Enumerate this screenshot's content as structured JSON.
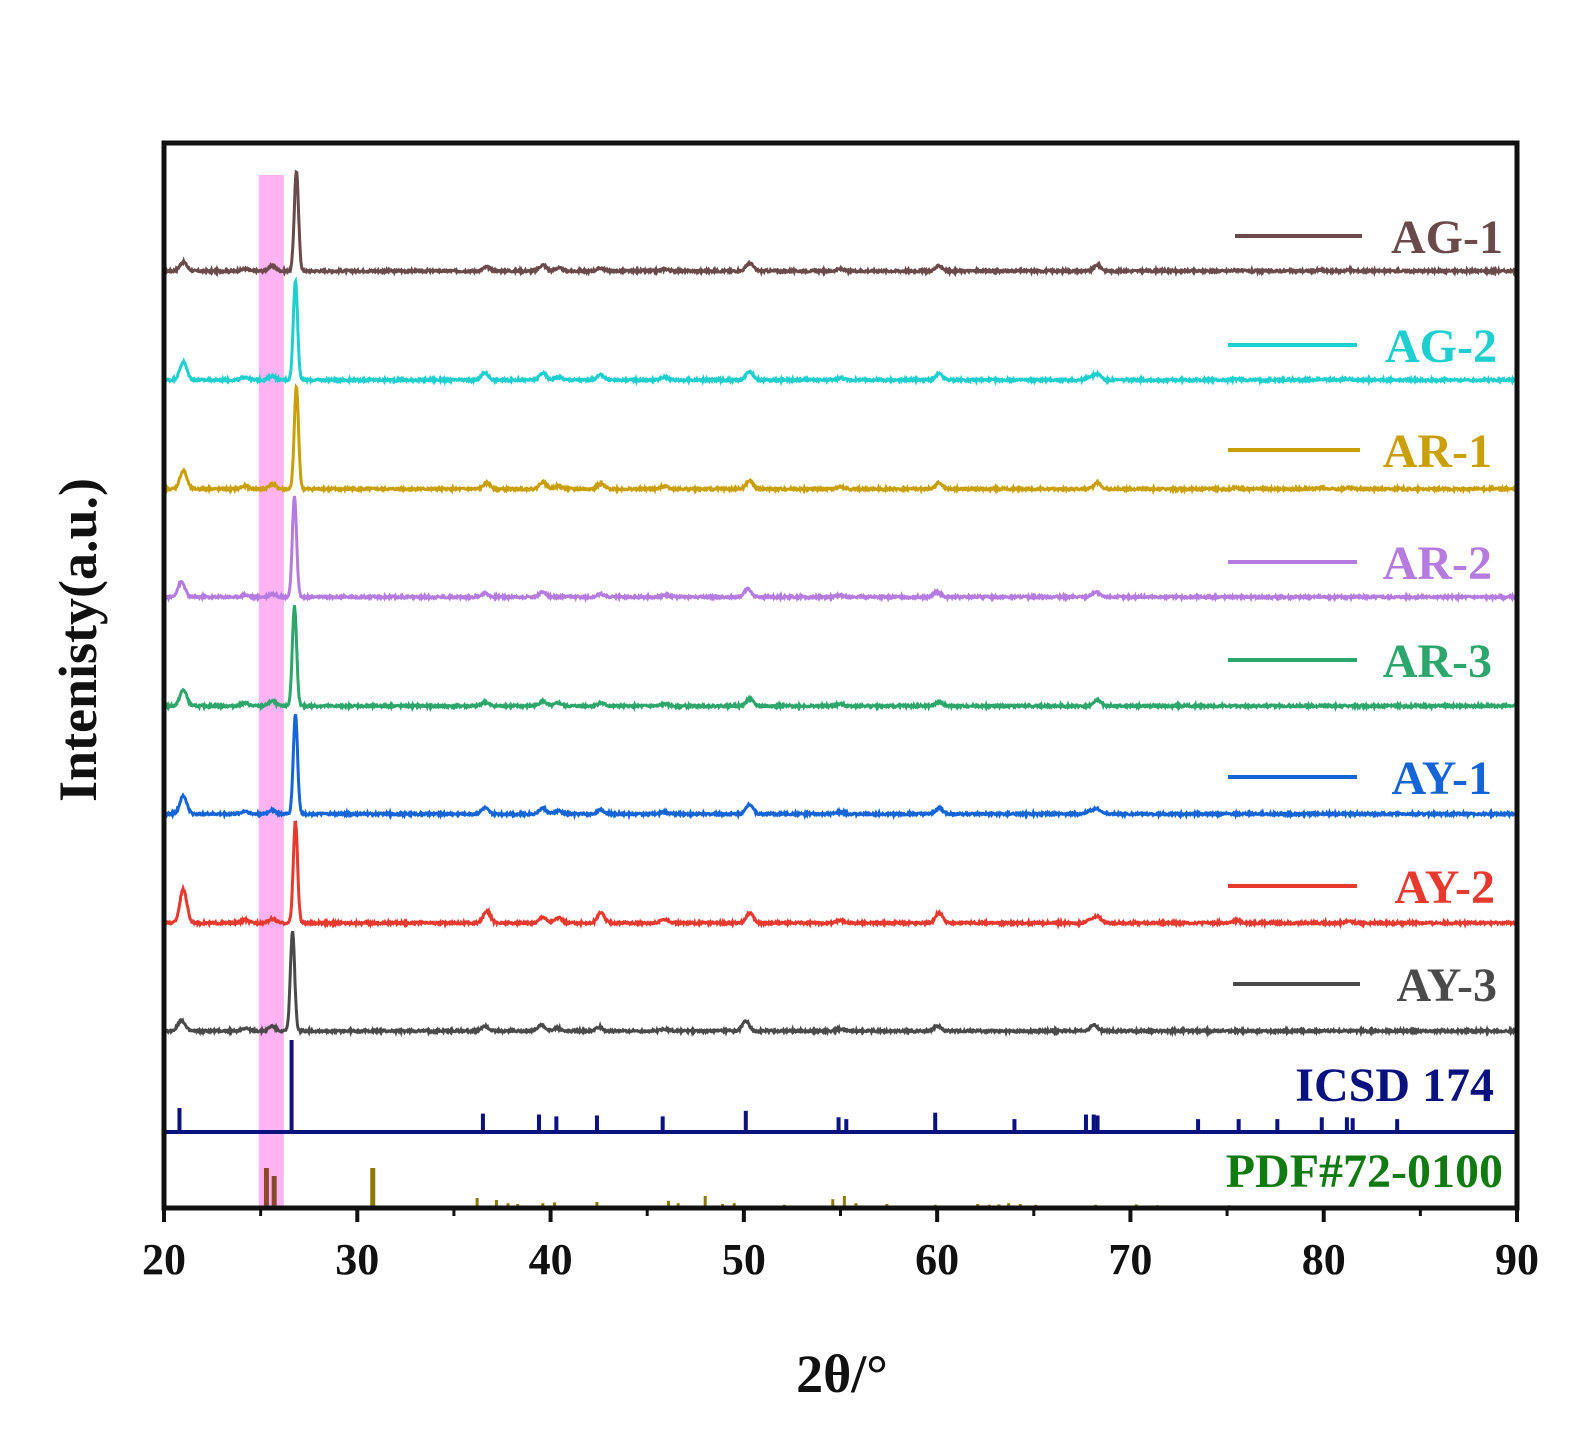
{
  "chart_data": {
    "type": "line",
    "title": "",
    "xlabel": "2θ/°",
    "ylabel": "Intenisty(a.u.)",
    "xlim": [
      20,
      90
    ],
    "xticks": [
      20,
      30,
      40,
      50,
      60,
      70,
      80,
      90
    ],
    "xtick_labels": [
      "20",
      "30",
      "40",
      "50",
      "60",
      "70",
      "80",
      "90"
    ],
    "grid": false,
    "yticks_shown": false,
    "legend": "right, stacked labels",
    "highlight_band": {
      "x_range": [
        24.9,
        26.2
      ],
      "color": "#ffb3f3"
    },
    "series": [
      {
        "name": "AG-1",
        "color": "#6a4a4a",
        "peaks": [
          [
            21.0,
            0.09
          ],
          [
            24.2,
            0.02
          ],
          [
            25.6,
            0.05
          ],
          [
            26.85,
            1.0
          ],
          [
            36.7,
            0.04
          ],
          [
            39.6,
            0.06
          ],
          [
            40.4,
            0.03
          ],
          [
            42.6,
            0.03
          ],
          [
            45.9,
            0.02
          ],
          [
            50.3,
            0.08
          ],
          [
            55.0,
            0.02
          ],
          [
            60.1,
            0.05
          ],
          [
            68.3,
            0.06
          ],
          [
            75.5,
            0.01
          ],
          [
            79.8,
            0.01
          ],
          [
            81.3,
            0.01
          ]
        ]
      },
      {
        "name": "AG-2",
        "color": "#1ecfcf",
        "peaks": [
          [
            21.0,
            0.18
          ],
          [
            24.2,
            0.03
          ],
          [
            25.6,
            0.04
          ],
          [
            26.8,
            1.0
          ],
          [
            36.6,
            0.07
          ],
          [
            39.6,
            0.07
          ],
          [
            40.4,
            0.03
          ],
          [
            42.6,
            0.05
          ],
          [
            45.9,
            0.03
          ],
          [
            50.3,
            0.09
          ],
          [
            55.0,
            0.02
          ],
          [
            60.1,
            0.06
          ],
          [
            67.9,
            0.03
          ],
          [
            68.3,
            0.06
          ],
          [
            75.5,
            0.01
          ],
          [
            79.8,
            0.01
          ],
          [
            81.3,
            0.01
          ]
        ]
      },
      {
        "name": "AR-1",
        "color": "#c9a00a",
        "peaks": [
          [
            21.0,
            0.18
          ],
          [
            24.2,
            0.03
          ],
          [
            25.6,
            0.05
          ],
          [
            26.85,
            1.0
          ],
          [
            36.7,
            0.06
          ],
          [
            39.6,
            0.07
          ],
          [
            40.4,
            0.03
          ],
          [
            42.6,
            0.05
          ],
          [
            45.9,
            0.03
          ],
          [
            50.3,
            0.08
          ],
          [
            55.0,
            0.02
          ],
          [
            60.1,
            0.06
          ],
          [
            68.3,
            0.06
          ],
          [
            75.5,
            0.01
          ],
          [
            79.8,
            0.01
          ],
          [
            81.3,
            0.01
          ]
        ]
      },
      {
        "name": "AR-2",
        "color": "#b57be0",
        "peaks": [
          [
            20.9,
            0.15
          ],
          [
            24.2,
            0.02
          ],
          [
            25.6,
            0.03
          ],
          [
            26.75,
            1.0
          ],
          [
            36.6,
            0.04
          ],
          [
            39.6,
            0.05
          ],
          [
            42.6,
            0.03
          ],
          [
            45.9,
            0.02
          ],
          [
            50.2,
            0.08
          ],
          [
            55.0,
            0.02
          ],
          [
            60.0,
            0.05
          ],
          [
            68.2,
            0.05
          ]
        ]
      },
      {
        "name": "AR-3",
        "color": "#2ca66a",
        "peaks": [
          [
            21.0,
            0.16
          ],
          [
            24.2,
            0.03
          ],
          [
            25.6,
            0.05
          ],
          [
            26.75,
            1.0
          ],
          [
            36.6,
            0.04
          ],
          [
            39.6,
            0.05
          ],
          [
            40.4,
            0.03
          ],
          [
            42.6,
            0.03
          ],
          [
            45.9,
            0.02
          ],
          [
            50.3,
            0.07
          ],
          [
            55.0,
            0.02
          ],
          [
            60.1,
            0.04
          ],
          [
            68.3,
            0.06
          ]
        ]
      },
      {
        "name": "AY-1",
        "color": "#1565d8",
        "peaks": [
          [
            21.0,
            0.18
          ],
          [
            24.2,
            0.03
          ],
          [
            25.6,
            0.04
          ],
          [
            26.8,
            1.0
          ],
          [
            36.6,
            0.06
          ],
          [
            39.6,
            0.06
          ],
          [
            40.4,
            0.03
          ],
          [
            42.6,
            0.04
          ],
          [
            45.9,
            0.02
          ],
          [
            50.3,
            0.1
          ],
          [
            55.0,
            0.02
          ],
          [
            60.1,
            0.06
          ],
          [
            67.9,
            0.03
          ],
          [
            68.3,
            0.05
          ]
        ]
      },
      {
        "name": "AY-2",
        "color": "#e8392f",
        "peaks": [
          [
            21.0,
            0.33
          ],
          [
            24.2,
            0.03
          ],
          [
            25.6,
            0.04
          ],
          [
            26.8,
            1.0
          ],
          [
            36.7,
            0.12
          ],
          [
            39.6,
            0.06
          ],
          [
            40.4,
            0.05
          ],
          [
            42.6,
            0.1
          ],
          [
            45.9,
            0.04
          ],
          [
            50.3,
            0.1
          ],
          [
            55.0,
            0.03
          ],
          [
            60.1,
            0.1
          ],
          [
            67.9,
            0.03
          ],
          [
            68.3,
            0.06
          ],
          [
            75.5,
            0.02
          ],
          [
            81.3,
            0.02
          ]
        ]
      },
      {
        "name": "AY-3",
        "color": "#4a4a4a",
        "peaks": [
          [
            20.9,
            0.11
          ],
          [
            24.2,
            0.03
          ],
          [
            25.6,
            0.05
          ],
          [
            26.65,
            1.0
          ],
          [
            36.6,
            0.05
          ],
          [
            39.5,
            0.06
          ],
          [
            40.3,
            0.03
          ],
          [
            42.5,
            0.04
          ],
          [
            45.9,
            0.02
          ],
          [
            50.1,
            0.1
          ],
          [
            55.0,
            0.02
          ],
          [
            60.0,
            0.05
          ],
          [
            68.1,
            0.06
          ]
        ]
      }
    ],
    "reference_patterns": [
      {
        "name": "ICSD 174",
        "color": "#0a1280",
        "sticks": [
          [
            20.8,
            0.26
          ],
          [
            26.6,
            1.0
          ],
          [
            36.5,
            0.2
          ],
          [
            39.4,
            0.19
          ],
          [
            40.3,
            0.17
          ],
          [
            42.4,
            0.18
          ],
          [
            45.8,
            0.17
          ],
          [
            50.1,
            0.23
          ],
          [
            54.9,
            0.16
          ],
          [
            55.3,
            0.14
          ],
          [
            59.9,
            0.21
          ],
          [
            64.0,
            0.14
          ],
          [
            67.7,
            0.19
          ],
          [
            68.1,
            0.19
          ],
          [
            68.3,
            0.18
          ],
          [
            73.5,
            0.14
          ],
          [
            75.6,
            0.14
          ],
          [
            77.6,
            0.14
          ],
          [
            79.9,
            0.16
          ],
          [
            81.2,
            0.16
          ],
          [
            81.5,
            0.15
          ],
          [
            83.8,
            0.14
          ]
        ]
      },
      {
        "name": "PDF#72-0100",
        "color": "#117a11",
        "stick_color": "#8a7a00",
        "sticks": [
          [
            25.3,
            1.0
          ],
          [
            25.7,
            0.8
          ],
          [
            30.8,
            1.0
          ],
          [
            32.9,
            0.06
          ],
          [
            34.9,
            0.05
          ],
          [
            36.2,
            0.25
          ],
          [
            37.2,
            0.2
          ],
          [
            37.8,
            0.12
          ],
          [
            38.3,
            0.1
          ],
          [
            39.6,
            0.12
          ],
          [
            40.2,
            0.14
          ],
          [
            42.4,
            0.15
          ],
          [
            43.2,
            0.06
          ],
          [
            46.1,
            0.18
          ],
          [
            46.6,
            0.12
          ],
          [
            48.0,
            0.3
          ],
          [
            48.9,
            0.1
          ],
          [
            49.5,
            0.12
          ],
          [
            52.1,
            0.08
          ],
          [
            53.3,
            0.06
          ],
          [
            54.6,
            0.22
          ],
          [
            55.2,
            0.3
          ],
          [
            55.8,
            0.12
          ],
          [
            57.4,
            0.1
          ],
          [
            59.9,
            0.08
          ],
          [
            62.1,
            0.1
          ],
          [
            62.7,
            0.08
          ],
          [
            63.2,
            0.09
          ],
          [
            63.7,
            0.12
          ],
          [
            64.3,
            0.1
          ],
          [
            65.1,
            0.08
          ],
          [
            66.2,
            0.06
          ],
          [
            68.2,
            0.08
          ],
          [
            70.3,
            0.09
          ],
          [
            71.4,
            0.07
          ],
          [
            73.2,
            0.06
          ],
          [
            75.1,
            0.07
          ],
          [
            76.0,
            0.06
          ],
          [
            77.6,
            0.06
          ],
          [
            80.1,
            0.06
          ],
          [
            82.4,
            0.06
          ],
          [
            83.3,
            0.05
          ],
          [
            85.6,
            0.06
          ],
          [
            87.0,
            0.05
          ],
          [
            88.7,
            0.05
          ]
        ]
      }
    ]
  }
}
